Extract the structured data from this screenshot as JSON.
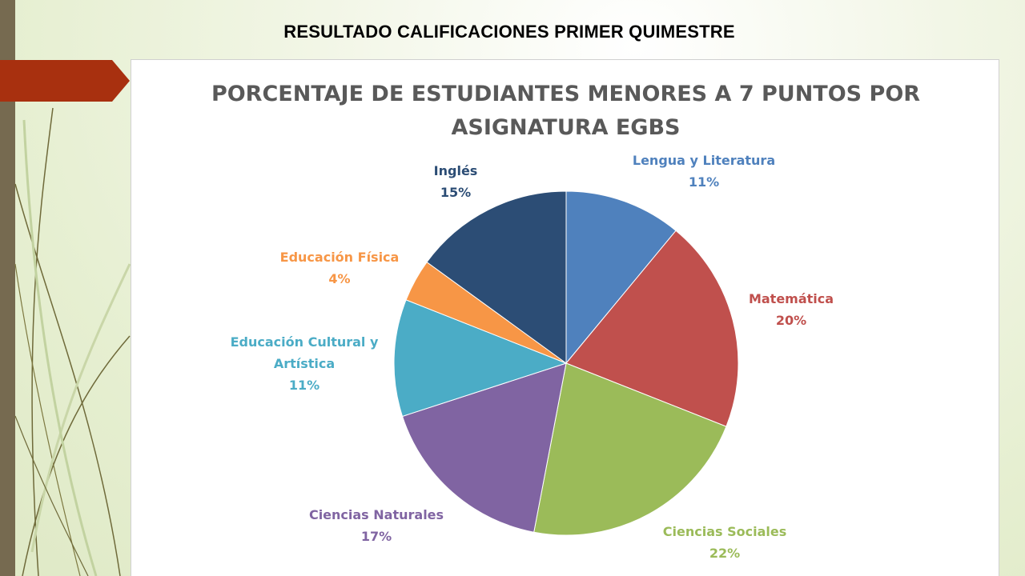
{
  "slide": {
    "title": "RESULTADO CALIFICACIONES PRIMER QUIMESTRE"
  },
  "colors": {
    "left_bar": "#766a50",
    "accent_tab": "#a8300f",
    "title_text": "#595959"
  },
  "chart_data": {
    "type": "pie",
    "title": "PORCENTAJE DE ESTUDIANTES MENORES A 7 PUNTOS POR ASIGNATURA EGBS",
    "title_lines": [
      "PORCENTAJE DE ESTUDIANTES MENORES A 7 PUNTOS POR",
      "ASIGNATURA EGBS"
    ],
    "start": "top",
    "direction": "clockwise",
    "slices": [
      {
        "label": "Lengua y Literatura",
        "label_lines": [
          "Lengua y Literatura"
        ],
        "value": 11,
        "value_label": "11%",
        "color": "#4f81bd"
      },
      {
        "label": "Matemática",
        "label_lines": [
          "Matemática"
        ],
        "value": 20,
        "value_label": "20%",
        "color": "#c0504d"
      },
      {
        "label": "Ciencias Sociales",
        "label_lines": [
          "Ciencias Sociales"
        ],
        "value": 22,
        "value_label": "22%",
        "color": "#9bbb59"
      },
      {
        "label": "Ciencias Naturales",
        "label_lines": [
          "Ciencias Naturales"
        ],
        "value": 17,
        "value_label": "17%",
        "color": "#8064a2"
      },
      {
        "label": "Educación Cultural y Artística",
        "label_lines": [
          "Educación Cultural  y",
          "Artística"
        ],
        "value": 11,
        "value_label": "11%",
        "color": "#4bacc6"
      },
      {
        "label": "Educación Física",
        "label_lines": [
          "Educación Física"
        ],
        "value": 4,
        "value_label": "4%",
        "color": "#f79646"
      },
      {
        "label": "Inglés",
        "label_lines": [
          "Inglés"
        ],
        "value": 15,
        "value_label": "15%",
        "color": "#2c4d75"
      }
    ]
  }
}
